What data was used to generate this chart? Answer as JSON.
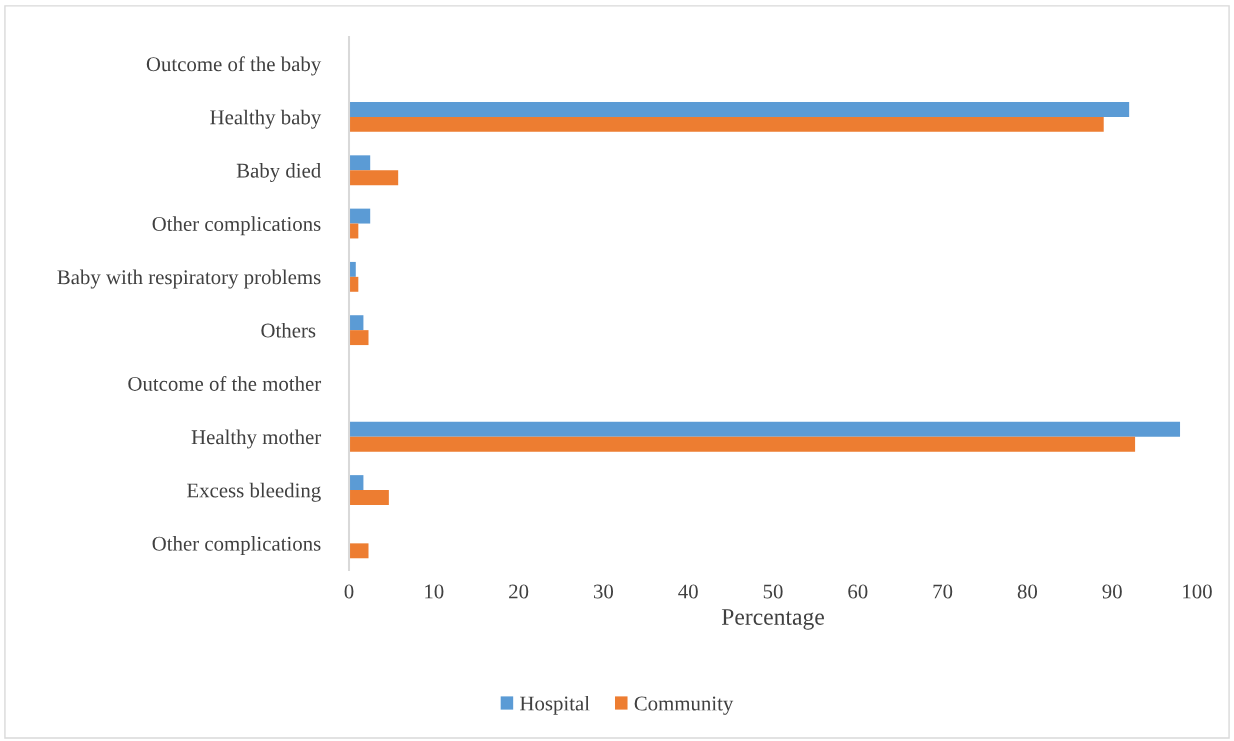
{
  "chart_data": {
    "type": "bar",
    "orientation": "horizontal",
    "xlabel": "Percentage",
    "categories": [
      "Outcome of the baby",
      "Healthy baby",
      "Baby died",
      "Other complications",
      "Baby with respiratory problems",
      "Others ",
      "Outcome of the mother",
      "Healthy mother",
      "Excess bleeding",
      "Other complications"
    ],
    "series": [
      {
        "name": "Hospital",
        "color": "#5b9bd5",
        "values": [
          null,
          92,
          2.5,
          2.5,
          0.8,
          1.7,
          null,
          98,
          1.7,
          null
        ]
      },
      {
        "name": "Community",
        "color": "#ed7d31",
        "values": [
          null,
          89,
          5.8,
          1.1,
          1.1,
          2.3,
          null,
          92.7,
          4.7,
          2.3
        ]
      }
    ],
    "xlim": [
      0,
      100
    ],
    "xticks": [
      0,
      10,
      20,
      30,
      40,
      50,
      60,
      70,
      80,
      90,
      100
    ],
    "grid": false,
    "legend": "bottom"
  }
}
